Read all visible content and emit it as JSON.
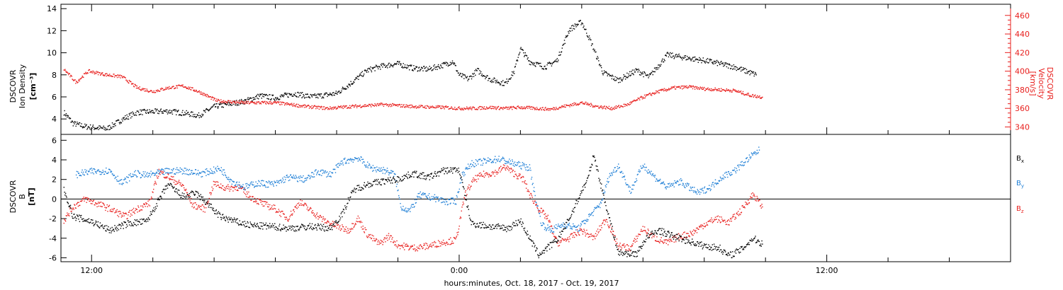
{
  "chart_data": [
    {
      "type": "scatter",
      "panel": "plasma",
      "x_axis": {
        "unit": "hours from 0:00 Oct. 19, 2017",
        "range": [
          -13,
          18
        ]
      },
      "left_axis": {
        "label_lines": [
          "DSCOVR",
          "Ion Density"
        ],
        "unit_label": "[cm⁻³]",
        "range": [
          2.6,
          14.4
        ],
        "ticks": [
          4,
          6,
          8,
          10,
          12,
          14
        ],
        "color": "#000000"
      },
      "right_axis": {
        "label_lines": [
          "DSCOVR",
          "Velocity",
          "[km/s]"
        ],
        "range": [
          332,
          472
        ],
        "ticks": [
          340,
          360,
          380,
          400,
          420,
          440,
          460
        ],
        "color": "#e8201e"
      },
      "series": [
        {
          "axis": "left",
          "color": "#000000",
          "points": [
            [
              -12.9,
              4.6
            ],
            [
              -12.6,
              3.6
            ],
            [
              -12.2,
              3.3
            ],
            [
              -11.5,
              3.1
            ],
            [
              -10.9,
              4.1
            ],
            [
              -10.5,
              4.6
            ],
            [
              -9.5,
              4.7
            ],
            [
              -8.9,
              4.5
            ],
            [
              -8.5,
              4.3
            ],
            [
              -8,
              5.1
            ],
            [
              -7,
              5.6
            ],
            [
              -6.5,
              6.1
            ],
            [
              -6,
              5.9
            ],
            [
              -5.4,
              6.3
            ],
            [
              -4.8,
              6
            ],
            [
              -4,
              6.3
            ],
            [
              -3.5,
              7.3
            ],
            [
              -3,
              8.4
            ],
            [
              -2.5,
              8.8
            ],
            [
              -2,
              9
            ],
            [
              -1.5,
              8.6
            ],
            [
              -1,
              8.5
            ],
            [
              -0.5,
              8.9
            ],
            [
              -0.2,
              9.2
            ],
            [
              0,
              8
            ],
            [
              0.3,
              7.6
            ],
            [
              0.6,
              8.4
            ],
            [
              1,
              7.6
            ],
            [
              1.5,
              7.2
            ],
            [
              1.8,
              8.3
            ],
            [
              2,
              10.4
            ],
            [
              2.3,
              9.2
            ],
            [
              2.8,
              8.7
            ],
            [
              3.2,
              9.3
            ],
            [
              3.6,
              12.1
            ],
            [
              4,
              12.8
            ],
            [
              4.3,
              11
            ],
            [
              4.7,
              8.2
            ],
            [
              5.2,
              7.5
            ],
            [
              5.8,
              8.4
            ],
            [
              6.2,
              7.8
            ],
            [
              6.8,
              9.8
            ],
            [
              7.5,
              9.5
            ],
            [
              8.2,
              9.2
            ],
            [
              9,
              8.7
            ],
            [
              9.4,
              8.3
            ],
            [
              9.7,
              8
            ]
          ]
        },
        {
          "axis": "right",
          "color": "#e8201e",
          "points": [
            [
              -12.9,
              402
            ],
            [
              -12.5,
              388
            ],
            [
              -12.1,
              400
            ],
            [
              -11.5,
              396
            ],
            [
              -11,
              394
            ],
            [
              -10.5,
              382
            ],
            [
              -10,
              378
            ],
            [
              -9.5,
              382
            ],
            [
              -9,
              384
            ],
            [
              -8.5,
              378
            ],
            [
              -7.9,
              368
            ],
            [
              -7,
              366
            ],
            [
              -6.5,
              366
            ],
            [
              -6,
              366
            ],
            [
              -5.5,
              364
            ],
            [
              -5,
              362
            ],
            [
              -4.3,
              360
            ],
            [
              -3.5,
              362
            ],
            [
              -3,
              363
            ],
            [
              -2.5,
              364
            ],
            [
              -2,
              363
            ],
            [
              -1.5,
              362
            ],
            [
              -0.5,
              361
            ],
            [
              0,
              360
            ],
            [
              0.5,
              360
            ],
            [
              1,
              361
            ],
            [
              1.5,
              360
            ],
            [
              2,
              361
            ],
            [
              2.5,
              360
            ],
            [
              3,
              359
            ],
            [
              3.4,
              362
            ],
            [
              4,
              366
            ],
            [
              4.5,
              362
            ],
            [
              5,
              360
            ],
            [
              5.5,
              364
            ],
            [
              6,
              372
            ],
            [
              6.5,
              378
            ],
            [
              7,
              382
            ],
            [
              7.5,
              383
            ],
            [
              8,
              381
            ],
            [
              8.5,
              380
            ],
            [
              9,
              379
            ],
            [
              9.5,
              374
            ],
            [
              9.9,
              372
            ]
          ]
        }
      ]
    },
    {
      "type": "scatter",
      "panel": "magnetic_field",
      "x_axis": {
        "range": [
          -13,
          18
        ],
        "ticks": [
          -12,
          0,
          12
        ],
        "tick_labels": [
          "12:00",
          "0:00",
          "12:00"
        ],
        "label": "hours:minutes, Oct. 18, 2017 - Oct. 19, 2017"
      },
      "y_axis": {
        "label_lines": [
          "DSCOVR",
          "B"
        ],
        "unit_label": "[nT]",
        "range": [
          -6.4,
          6.6
        ],
        "ticks": [
          -6,
          -4,
          -2,
          0,
          2,
          4,
          6
        ],
        "zero_line": true
      },
      "series": [
        {
          "name": "B",
          "subscript": "x",
          "color": "#000000",
          "points": [
            [
              -12.9,
              1
            ],
            [
              -12.6,
              -1.8
            ],
            [
              -12,
              -2.3
            ],
            [
              -11.4,
              -3.2
            ],
            [
              -10.8,
              -2.5
            ],
            [
              -10.2,
              -2.3
            ],
            [
              -9.5,
              1.5
            ],
            [
              -9,
              0.2
            ],
            [
              -8.6,
              0.6
            ],
            [
              -8.2,
              -0.5
            ],
            [
              -7.8,
              -1.8
            ],
            [
              -7.2,
              -2.4
            ],
            [
              -6.8,
              -2.7
            ],
            [
              -6.2,
              -2.8
            ],
            [
              -5.5,
              -3
            ],
            [
              -4.8,
              -2.8
            ],
            [
              -4.2,
              -3
            ],
            [
              -3.8,
              -1.5
            ],
            [
              -3.6,
              0
            ],
            [
              -3.4,
              1
            ],
            [
              -3,
              1.5
            ],
            [
              -2.5,
              1.8
            ],
            [
              -2,
              2
            ],
            [
              -1.5,
              2.6
            ],
            [
              -1,
              2.2
            ],
            [
              -0.5,
              2.9
            ],
            [
              0,
              3
            ],
            [
              0.4,
              -2.5
            ],
            [
              1,
              -2.8
            ],
            [
              1.6,
              -3
            ],
            [
              2,
              -2.2
            ],
            [
              2.3,
              -4
            ],
            [
              2.6,
              -5.7
            ],
            [
              3.2,
              -4.2
            ],
            [
              3.6,
              -2
            ],
            [
              4,
              0.8
            ],
            [
              4.2,
              2
            ],
            [
              4.4,
              4.5
            ],
            [
              4.7,
              0.5
            ],
            [
              5.2,
              -5.5
            ],
            [
              5.8,
              -5.6
            ],
            [
              6.1,
              -4
            ],
            [
              6.5,
              -3.2
            ],
            [
              7,
              -3.8
            ],
            [
              7.5,
              -4.3
            ],
            [
              8,
              -4.8
            ],
            [
              8.5,
              -5
            ],
            [
              8.8,
              -5.8
            ],
            [
              9.2,
              -5.2
            ],
            [
              9.6,
              -4
            ],
            [
              9.9,
              -4.6
            ]
          ]
        },
        {
          "name": "B",
          "subscript": "y",
          "color": "#1f7fd6",
          "points": [
            [
              -12.5,
              2.5
            ],
            [
              -12,
              2.8
            ],
            [
              -11.4,
              2.9
            ],
            [
              -11,
              1.6
            ],
            [
              -10.6,
              2.6
            ],
            [
              -10.2,
              2.4
            ],
            [
              -9.6,
              2.8
            ],
            [
              -9,
              2.9
            ],
            [
              -8.4,
              2.6
            ],
            [
              -7.8,
              3.1
            ],
            [
              -7.4,
              1.8
            ],
            [
              -7,
              1.2
            ],
            [
              -6.6,
              1.6
            ],
            [
              -6,
              1.5
            ],
            [
              -5.6,
              2.2
            ],
            [
              -5,
              2
            ],
            [
              -4.6,
              2.8
            ],
            [
              -4.2,
              2.5
            ],
            [
              -3.8,
              3.8
            ],
            [
              -3.3,
              4.2
            ],
            [
              -2.9,
              3.2
            ],
            [
              -2.4,
              2.9
            ],
            [
              -2.1,
              2.5
            ],
            [
              -1.9,
              -0.8
            ],
            [
              -1.6,
              -1.2
            ],
            [
              -1.3,
              0.4
            ],
            [
              -0.8,
              0.1
            ],
            [
              -0.4,
              -0.3
            ],
            [
              -0.1,
              -0.2
            ],
            [
              0.1,
              2.5
            ],
            [
              0.4,
              3.6
            ],
            [
              0.8,
              3.8
            ],
            [
              1.3,
              4.1
            ],
            [
              1.8,
              3.6
            ],
            [
              2.3,
              3.2
            ],
            [
              2.5,
              0
            ],
            [
              2.7,
              -2.6
            ],
            [
              3,
              -3.2
            ],
            [
              3.4,
              -2.6
            ],
            [
              3.9,
              -3
            ],
            [
              4.3,
              -1.6
            ],
            [
              4.6,
              -0.6
            ],
            [
              4.9,
              2.3
            ],
            [
              5.2,
              3.4
            ],
            [
              5.6,
              0.8
            ],
            [
              6,
              3.5
            ],
            [
              6.4,
              2.2
            ],
            [
              6.8,
              1.2
            ],
            [
              7.2,
              1.8
            ],
            [
              7.8,
              0.6
            ],
            [
              8.2,
              1.2
            ],
            [
              8.6,
              2.3
            ],
            [
              9,
              2.9
            ],
            [
              9.4,
              4
            ],
            [
              9.8,
              5
            ]
          ]
        },
        {
          "name": "B",
          "subscript": "z",
          "color": "#e8201e",
          "points": [
            [
              -12.9,
              -2.2
            ],
            [
              -12.6,
              -0.8
            ],
            [
              -12.2,
              0
            ],
            [
              -11.8,
              -0.5
            ],
            [
              -11.4,
              -1
            ],
            [
              -10.9,
              -1.8
            ],
            [
              -10.5,
              -1
            ],
            [
              -10.1,
              -0.4
            ],
            [
              -9.8,
              2.8
            ],
            [
              -9.4,
              2.1
            ],
            [
              -9,
              1.3
            ],
            [
              -8.7,
              -0.6
            ],
            [
              -8.3,
              -1
            ],
            [
              -8,
              1.6
            ],
            [
              -7.6,
              1.1
            ],
            [
              -7.2,
              1.2
            ],
            [
              -6.8,
              0.2
            ],
            [
              -6.4,
              -0.5
            ],
            [
              -6,
              -1
            ],
            [
              -5.6,
              -2
            ],
            [
              -5.2,
              -0.3
            ],
            [
              -4.8,
              -1.3
            ],
            [
              -4.4,
              -2.2
            ],
            [
              -4,
              -2.8
            ],
            [
              -3.6,
              -3.2
            ],
            [
              -3.3,
              -2
            ],
            [
              -3,
              -3.6
            ],
            [
              -2.6,
              -4.6
            ],
            [
              -2.3,
              -3.8
            ],
            [
              -2,
              -4.7
            ],
            [
              -1.5,
              -5
            ],
            [
              -1,
              -4.8
            ],
            [
              -0.5,
              -4.4
            ],
            [
              -0.1,
              -4.2
            ],
            [
              0.2,
              0.5
            ],
            [
              0.5,
              2
            ],
            [
              0.8,
              2.5
            ],
            [
              1.2,
              2.7
            ],
            [
              1.5,
              3.3
            ],
            [
              1.8,
              2.6
            ],
            [
              2.1,
              2
            ],
            [
              2.3,
              0.5
            ],
            [
              2.6,
              -1
            ],
            [
              2.9,
              -2
            ],
            [
              3.2,
              -4.5
            ],
            [
              3.6,
              -4
            ],
            [
              4,
              -3.2
            ],
            [
              4.4,
              -4
            ],
            [
              4.8,
              -2
            ],
            [
              5.2,
              -4.8
            ],
            [
              5.6,
              -5
            ],
            [
              6,
              -3
            ],
            [
              6.4,
              -4
            ],
            [
              6.8,
              -4.5
            ],
            [
              7.2,
              -3.8
            ],
            [
              7.6,
              -3.5
            ],
            [
              8,
              -2.6
            ],
            [
              8.4,
              -2
            ],
            [
              8.8,
              -2.4
            ],
            [
              9.2,
              -1.2
            ],
            [
              9.6,
              0.5
            ],
            [
              9.9,
              -0.8
            ]
          ]
        }
      ]
    }
  ]
}
